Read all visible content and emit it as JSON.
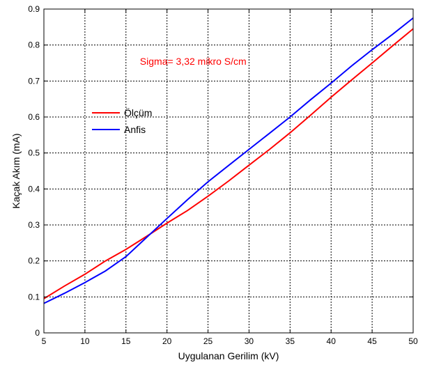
{
  "chart_data": {
    "type": "line",
    "title": "",
    "xlabel": "Uygulanan Gerilim (kV)",
    "ylabel": "Kaçak Akım (mA)",
    "xlim": [
      5,
      50
    ],
    "ylim": [
      0,
      0.9
    ],
    "xticks": [
      5,
      10,
      15,
      20,
      25,
      30,
      35,
      40,
      45,
      50
    ],
    "yticks": [
      0,
      0.1,
      0.2,
      0.3,
      0.4,
      0.5,
      0.6,
      0.7,
      0.8,
      0.9
    ],
    "grid": true,
    "legend": "upper-left",
    "annotation": {
      "text": "Sigma= 3,32 mikro S/cm",
      "color": "#ff0000",
      "x": 16.7,
      "y": 0.745
    },
    "series": [
      {
        "name": "Ölçüm",
        "color": "#ff0000",
        "x": [
          5,
          7.5,
          10,
          12.5,
          15,
          17.5,
          20,
          22.5,
          25,
          27.5,
          30,
          32.5,
          35,
          37.5,
          40,
          42.5,
          45,
          47.5,
          50
        ],
        "y": [
          0.095,
          0.13,
          0.163,
          0.2,
          0.232,
          0.268,
          0.305,
          0.34,
          0.38,
          0.422,
          0.466,
          0.51,
          0.556,
          0.605,
          0.655,
          0.703,
          0.75,
          0.798,
          0.845
        ]
      },
      {
        "name": "Anfis",
        "color": "#0000ff",
        "x": [
          5,
          7.5,
          10,
          12.5,
          15,
          17.5,
          20,
          22.5,
          25,
          27.5,
          30,
          32.5,
          35,
          37.5,
          40,
          42.5,
          45,
          47.5,
          50
        ],
        "y": [
          0.082,
          0.11,
          0.14,
          0.172,
          0.212,
          0.265,
          0.318,
          0.37,
          0.42,
          0.465,
          0.51,
          0.555,
          0.6,
          0.648,
          0.694,
          0.742,
          0.787,
          0.83,
          0.875
        ]
      }
    ]
  }
}
